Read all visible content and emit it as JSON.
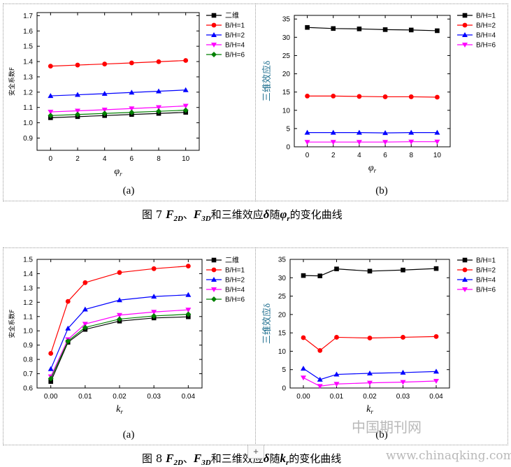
{
  "chart_data": [
    {
      "type": "line",
      "xlabel": "φr",
      "ylabel": "安全系数F",
      "xlim": [
        -1,
        11
      ],
      "ylim": [
        0.82,
        1.72
      ],
      "xticks": [
        0,
        2,
        4,
        6,
        8,
        10
      ],
      "yticks": [
        0.9,
        1.0,
        1.1,
        1.2,
        1.3,
        1.4,
        1.5,
        1.6,
        1.7
      ],
      "ytick_decimals": 1,
      "legend": "top-right",
      "grid": false,
      "x": [
        0,
        2,
        4,
        6,
        8,
        10
      ],
      "series": [
        {
          "name": "二维",
          "values": [
            1.033,
            1.04,
            1.047,
            1.054,
            1.061,
            1.068
          ],
          "color": "#000000",
          "marker": "square"
        },
        {
          "name": "B/H=1",
          "values": [
            1.37,
            1.377,
            1.384,
            1.391,
            1.399,
            1.407
          ],
          "color": "#ff0000",
          "marker": "circle"
        },
        {
          "name": "B/H=2",
          "values": [
            1.176,
            1.183,
            1.19,
            1.198,
            1.206,
            1.214
          ],
          "color": "#0000ff",
          "marker": "triangle-up"
        },
        {
          "name": "B/H=4",
          "values": [
            1.071,
            1.078,
            1.085,
            1.093,
            1.101,
            1.11
          ],
          "color": "#ff00ff",
          "marker": "triangle-down"
        },
        {
          "name": "B/H=6",
          "values": [
            1.047,
            1.054,
            1.061,
            1.068,
            1.075,
            1.082
          ],
          "color": "#008000",
          "marker": "diamond"
        }
      ]
    },
    {
      "type": "line",
      "xlabel": "φr",
      "ylabel": "三维效应δ",
      "xlim": [
        -1,
        11
      ],
      "ylim": [
        0,
        36
      ],
      "xticks": [
        0,
        2,
        4,
        6,
        8,
        10
      ],
      "yticks": [
        0,
        5,
        10,
        15,
        20,
        25,
        30,
        35
      ],
      "ytick_decimals": 0,
      "legend": "top-right",
      "grid": false,
      "x": [
        0,
        2,
        4,
        6,
        8,
        10
      ],
      "series": [
        {
          "name": "B/H=1",
          "values": [
            32.7,
            32.4,
            32.3,
            32.1,
            32.0,
            31.8
          ],
          "color": "#000000",
          "marker": "square"
        },
        {
          "name": "B/H=2",
          "values": [
            13.9,
            13.9,
            13.8,
            13.7,
            13.7,
            13.6
          ],
          "color": "#ff0000",
          "marker": "circle"
        },
        {
          "name": "B/H=4",
          "values": [
            3.9,
            3.9,
            3.9,
            3.8,
            3.9,
            3.9
          ],
          "color": "#0000ff",
          "marker": "triangle-up"
        },
        {
          "name": "B/H=6",
          "values": [
            1.3,
            1.3,
            1.3,
            1.3,
            1.4,
            1.4
          ],
          "color": "#ff00ff",
          "marker": "triangle-down"
        }
      ]
    },
    {
      "type": "line",
      "xlabel": "kr",
      "ylabel": "安全系数F",
      "xlim": [
        -0.004,
        0.044
      ],
      "ylim": [
        0.6,
        1.5
      ],
      "xticks": [
        0.0,
        0.01,
        0.02,
        0.03,
        0.04
      ],
      "xtick_decimals": 2,
      "yticks": [
        0.6,
        0.7,
        0.8,
        0.9,
        1.0,
        1.1,
        1.2,
        1.3,
        1.4,
        1.5
      ],
      "ytick_decimals": 1,
      "legend": "top-right",
      "grid": false,
      "x": [
        0,
        0.005,
        0.01,
        0.02,
        0.03,
        0.04
      ],
      "series": [
        {
          "name": "二维",
          "values": [
            0.645,
            0.92,
            1.01,
            1.068,
            1.09,
            1.098
          ],
          "color": "#000000",
          "marker": "square"
        },
        {
          "name": "B/H=1",
          "values": [
            0.842,
            1.206,
            1.337,
            1.408,
            1.435,
            1.453
          ],
          "color": "#ff0000",
          "marker": "circle"
        },
        {
          "name": "B/H=2",
          "values": [
            0.733,
            1.017,
            1.15,
            1.215,
            1.24,
            1.252
          ],
          "color": "#0000ff",
          "marker": "triangle-up"
        },
        {
          "name": "B/H=4",
          "values": [
            0.68,
            0.94,
            1.048,
            1.11,
            1.132,
            1.147
          ],
          "color": "#ff00ff",
          "marker": "triangle-down"
        },
        {
          "name": "B/H=6",
          "values": [
            0.666,
            0.928,
            1.024,
            1.082,
            1.104,
            1.116
          ],
          "color": "#008000",
          "marker": "diamond"
        }
      ]
    },
    {
      "type": "line",
      "xlabel": "kr",
      "ylabel": "三维效应δ",
      "xlim": [
        -0.004,
        0.044
      ],
      "ylim": [
        0,
        35
      ],
      "xticks": [
        0.0,
        0.01,
        0.02,
        0.03,
        0.04
      ],
      "xtick_decimals": 2,
      "yticks": [
        0,
        5,
        10,
        15,
        20,
        25,
        30,
        35
      ],
      "ytick_decimals": 0,
      "legend": "top-right",
      "grid": false,
      "x": [
        0,
        0.005,
        0.01,
        0.02,
        0.03,
        0.04
      ],
      "series": [
        {
          "name": "B/H=1",
          "values": [
            30.6,
            30.5,
            32.4,
            31.8,
            32.1,
            32.5
          ],
          "color": "#000000",
          "marker": "square"
        },
        {
          "name": "B/H=2",
          "values": [
            13.7,
            10.2,
            13.8,
            13.6,
            13.8,
            14.0
          ],
          "color": "#ff0000",
          "marker": "circle"
        },
        {
          "name": "B/H=4",
          "values": [
            5.3,
            2.3,
            3.7,
            4.0,
            4.2,
            4.5
          ],
          "color": "#0000ff",
          "marker": "triangle-up"
        },
        {
          "name": "B/H=6",
          "values": [
            2.8,
            0.5,
            1.1,
            1.4,
            1.6,
            1.9
          ],
          "color": "#ff00ff",
          "marker": "triangle-down"
        }
      ]
    }
  ],
  "labels": {
    "fig7_a": "(a)",
    "fig7_b": "(b)",
    "fig8_a": "(a)",
    "fig8_b": "(b)"
  },
  "captions": {
    "fig7": {
      "prefix": "图 7 ",
      "f": "F",
      "sub2d": "2D",
      "sep": "、",
      "sub3d": "3D",
      "mid": "和三维效应",
      "delta": "δ",
      "sui": "随",
      "var": "φ",
      "varsub": "r",
      "suffix": "的变化曲线"
    },
    "fig8": {
      "prefix": "图 8 ",
      "f": "F",
      "sub2d": "2D",
      "sep": "、",
      "sub3d": "3D",
      "mid": "和三维效应",
      "delta": "δ",
      "sui": "随",
      "var": "k",
      "varsub": "r",
      "suffix": "的变化曲线"
    }
  },
  "watermark": {
    "cn": "中国期刊网",
    "url": "www.chinaqking.com"
  },
  "ui": {
    "plus_symbol": "+"
  }
}
